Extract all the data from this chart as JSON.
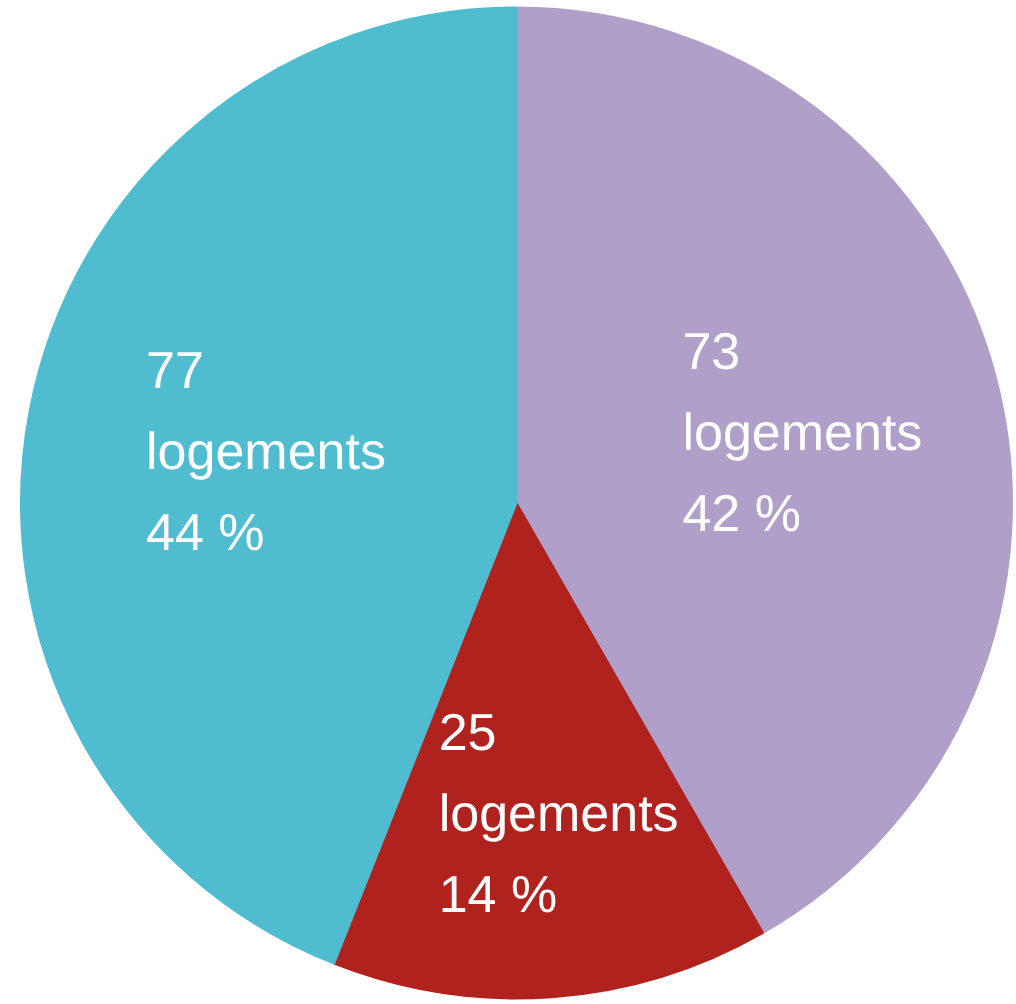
{
  "chart_data": {
    "type": "pie",
    "categories": [
      null,
      null,
      null
    ],
    "values": [
      73,
      25,
      77
    ],
    "colors": [
      "#b09fc8",
      "#b0221d",
      "#4fbcd0"
    ],
    "value_labels": [
      "73\nlogements\n42 %",
      "25\nlogements\n14 %",
      "77\nlogements\n44 %"
    ]
  }
}
